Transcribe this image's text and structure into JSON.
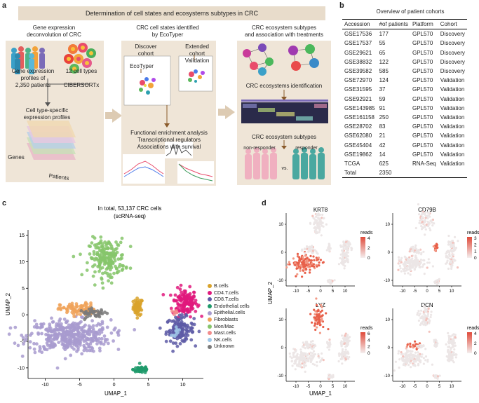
{
  "panel_a": {
    "letter": "a",
    "banner": "Determination of cell states and ecosystems subtypes in CRC",
    "box1": {
      "title_line1": "Gene expression",
      "title_line2": "deconvolution of CRC",
      "profiles_line1": "Gene expression",
      "profiles_line2": "profiles of",
      "profiles_line3": "2,350 patients",
      "cell_types": "12 cell types",
      "tool": "CIBERSORTx",
      "specific_line1": "Cell type-specific",
      "specific_line2": "expression profiles",
      "genes": "Genes",
      "patients": "Patients"
    },
    "box2": {
      "title_line1": "CRC cell states identified",
      "title_line2": "by EcoTyper",
      "discover_line1": "Discover",
      "discover_line2": "cohort",
      "extended_line1": "Extended",
      "extended_line2": "cohort",
      "ecotyper": "EcoTyper",
      "validation": "Validation",
      "analysis1": "Functional enrichment analysis",
      "analysis2": "Transcriptional regulators",
      "analysis3": "Associations with survival"
    },
    "box3": {
      "title_line1": "CRC ecosystem subtypes",
      "title_line2": "and association with treatments",
      "identification": "CRC ecosystems identification",
      "subtypes": "CRC ecosystem subtypes",
      "non_responder": "non-responder",
      "responder": "responder",
      "vs": "vs."
    },
    "colors": {
      "banner": "#e8dccb",
      "box": "#efe5d7",
      "arrow": "#ddcbb3"
    }
  },
  "panel_b": {
    "letter": "b",
    "title": "Overview of patient cohorts",
    "headers": [
      "Accession",
      "#of patients",
      "Platform",
      "Cohort"
    ],
    "rows": [
      [
        "GSE17536",
        "177",
        "GPL570",
        "Discovery"
      ],
      [
        "GSE17537",
        "55",
        "GPL570",
        "Discovery"
      ],
      [
        "GSE29621",
        "65",
        "GPL570",
        "Discovery"
      ],
      [
        "GSE38832",
        "122",
        "GPL570",
        "Discovery"
      ],
      [
        "GSE39582",
        "585",
        "GPL570",
        "Discovery"
      ],
      [
        "GSE72970",
        "124",
        "GPL570",
        "Validation"
      ],
      [
        "GSE31595",
        "37",
        "GPL570",
        "Validation"
      ],
      [
        "GSE92921",
        "59",
        "GPL570",
        "Validation"
      ],
      [
        "GSE143985",
        "91",
        "GPL570",
        "Validation"
      ],
      [
        "GSE161158",
        "250",
        "GPL570",
        "Validation"
      ],
      [
        "GSE28702",
        "83",
        "GPL570",
        "Validation"
      ],
      [
        "GSE62080",
        "21",
        "GPL570",
        "Validation"
      ],
      [
        "GSE45404",
        "42",
        "GPL570",
        "Validation"
      ],
      [
        "GSE19862",
        "14",
        "GPL570",
        "Validation"
      ],
      [
        "TCGA",
        "625",
        "RNA-Seq",
        "Validation"
      ],
      [
        "Total",
        "2350",
        "",
        ""
      ]
    ]
  },
  "panel_c": {
    "letter": "c"
  },
  "panel_d": {
    "letter": "d"
  },
  "chart_data": [
    {
      "type": "scatter",
      "title": "In total, 53,137 CRC cells",
      "subtitle": "(scRNA-seq)",
      "xlabel": "UMAP_1",
      "ylabel": "UMAP_2",
      "xlim": [
        -12.5,
        13
      ],
      "ylim": [
        -12,
        16
      ],
      "xticks": [
        -10,
        -5,
        0,
        5,
        10
      ],
      "yticks": [
        -10,
        -5,
        0,
        5,
        10,
        15
      ],
      "legend_position": "right",
      "series": [
        {
          "name": "B.cells",
          "color": "#d9a32b",
          "center": [
            3.5,
            1.5
          ],
          "spread": [
            0.35,
            0.8
          ],
          "n": 60
        },
        {
          "name": "CD4.T.cells",
          "color": "#e0197d",
          "center": [
            10.3,
            2.3
          ],
          "spread": [
            0.9,
            1.3
          ],
          "n": 140
        },
        {
          "name": "CD8.T.cells",
          "color": "#5d5ba6",
          "center": [
            9.6,
            -2.8
          ],
          "spread": [
            1.0,
            1.2
          ],
          "n": 130
        },
        {
          "name": "Endothelial.cells",
          "color": "#1f9a6b",
          "center": [
            4.0,
            -10.3
          ],
          "spread": [
            0.6,
            0.35
          ],
          "n": 50
        },
        {
          "name": "Epithelial.cells",
          "color": "#a89bcf",
          "center": [
            -6.5,
            -4.0
          ],
          "spread": [
            3.0,
            1.5
          ],
          "n": 420
        },
        {
          "name": "Fibroblasts",
          "color": "#f0a35a",
          "center": [
            -5.2,
            1.0
          ],
          "spread": [
            1.3,
            0.6
          ],
          "n": 90
        },
        {
          "name": "Mon/Mac",
          "color": "#86c56b",
          "center": [
            -1.0,
            10.7
          ],
          "spread": [
            1.3,
            1.8
          ],
          "n": 200
        },
        {
          "name": "Mast.cells",
          "color": "#f28c8c",
          "center": [
            8.8,
            0.5
          ],
          "spread": [
            0.2,
            0.2
          ],
          "n": 6
        },
        {
          "name": "NK.cells",
          "color": "#9ec6e6",
          "center": [
            9.2,
            -3.2
          ],
          "spread": [
            0.4,
            0.4
          ],
          "n": 10
        },
        {
          "name": "Unknown",
          "color": "#7a7a7a",
          "center": [
            -3.0,
            0.3
          ],
          "spread": [
            1.0,
            0.4
          ],
          "n": 40
        }
      ]
    },
    {
      "type": "scatter",
      "title": "KRT8",
      "xlabel": "",
      "ylabel": "UMAP_2",
      "color_label": "reads",
      "color_ticks": [
        "4",
        "2",
        "0"
      ],
      "xlim": [
        -14,
        14
      ],
      "ylim": [
        -12,
        14
      ],
      "xticks": [
        -10,
        -5,
        0,
        5,
        10
      ],
      "yticks": [
        -10,
        0,
        10
      ],
      "high_expression_region": "Epithelial.cells"
    },
    {
      "type": "scatter",
      "title": "CD79B",
      "xlabel": "",
      "ylabel": "",
      "color_label": "reads",
      "color_ticks": [
        "3",
        "2",
        "1",
        "0"
      ],
      "xlim": [
        -14,
        14
      ],
      "ylim": [
        -12,
        14
      ],
      "xticks": [
        -10,
        -5,
        0,
        5,
        10
      ],
      "yticks": [
        -10,
        0,
        10
      ],
      "high_expression_region": "B.cells"
    },
    {
      "type": "scatter",
      "title": "LYZ",
      "xlabel": "UMAP_1",
      "ylabel": "",
      "color_label": "reads",
      "color_ticks": [
        "6",
        "4",
        "2",
        "0"
      ],
      "xlim": [
        -14,
        14
      ],
      "ylim": [
        -12,
        14
      ],
      "xticks": [
        -10,
        -5,
        0,
        5,
        10
      ],
      "yticks": [
        -10,
        0,
        10
      ],
      "high_expression_region": "Mon/Mac"
    },
    {
      "type": "scatter",
      "title": "DCN",
      "xlabel": "",
      "ylabel": "",
      "color_label": "reads",
      "color_ticks": [
        "4",
        "2",
        "0"
      ],
      "xlim": [
        -14,
        14
      ],
      "ylim": [
        -12,
        14
      ],
      "xticks": [
        -10,
        -5,
        0,
        5,
        10
      ],
      "yticks": [
        -10,
        0,
        10
      ],
      "high_expression_region": "Fibroblasts"
    }
  ]
}
